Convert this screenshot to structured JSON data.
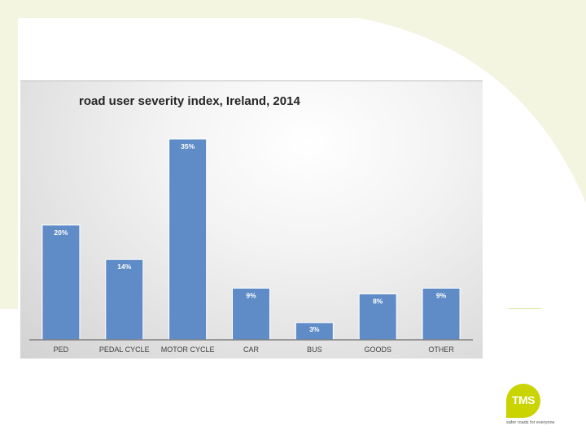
{
  "colors": {
    "background_tint": "#f3f5e1",
    "bar": "#5f8cc7",
    "bar_label": "#ffffff",
    "axis": "#808080",
    "logo": "#c9d400"
  },
  "chart_data": {
    "type": "bar",
    "title": "road user severity index, Ireland, 2014",
    "categories": [
      "PED",
      "PEDAL CYCLE",
      "MOTOR CYCLE",
      "CAR",
      "BUS",
      "GOODS",
      "OTHER"
    ],
    "values": [
      20,
      14,
      35,
      9,
      3,
      8,
      9
    ],
    "value_labels": [
      "20%",
      "14%",
      "35%",
      "9%",
      "3%",
      "8%",
      "9%"
    ],
    "xlabel": "",
    "ylabel": "",
    "ylim": [
      0,
      35
    ],
    "grid": false,
    "legend": "none"
  },
  "logo": {
    "text": "TMS",
    "tagline": "safer roads for everyone"
  }
}
